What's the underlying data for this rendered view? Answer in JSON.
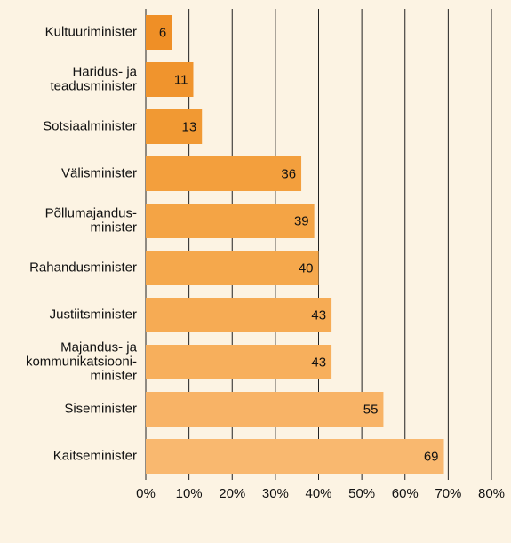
{
  "chart_data": {
    "type": "barh",
    "categories": [
      [
        "Kultuuriminister"
      ],
      [
        "Haridus- ja",
        "teadusminister"
      ],
      [
        "Sotsiaalminister"
      ],
      [
        "Välisminister"
      ],
      [
        "Põllumajandus-",
        "minister"
      ],
      [
        "Rahandusminister"
      ],
      [
        "Justiitsminister"
      ],
      [
        "Majandus- ja",
        "kommunikatsiooni-",
        "minister"
      ],
      [
        "Siseminister"
      ],
      [
        "Kaitseminister"
      ]
    ],
    "values": [
      6,
      11,
      13,
      36,
      39,
      40,
      43,
      43,
      55,
      69
    ],
    "colors": [
      "#ef8f26",
      "#f0942d",
      "#f19933",
      "#f39f3d",
      "#f4a445",
      "#f5a84c",
      "#f6ab54",
      "#f7af5c",
      "#f8b366",
      "#f9b86f"
    ],
    "xlim": [
      0,
      80
    ],
    "xticks": [
      {
        "value": 0,
        "label": "0%"
      },
      {
        "value": 10,
        "label": "10%"
      },
      {
        "value": 20,
        "label": "20%"
      },
      {
        "value": 30,
        "label": "30%"
      },
      {
        "value": 40,
        "label": "40%"
      },
      {
        "value": 50,
        "label": "50%"
      },
      {
        "value": 60,
        "label": "60%"
      },
      {
        "value": 70,
        "label": "70%"
      },
      {
        "value": 80,
        "label": "80%"
      }
    ],
    "grid": true
  }
}
